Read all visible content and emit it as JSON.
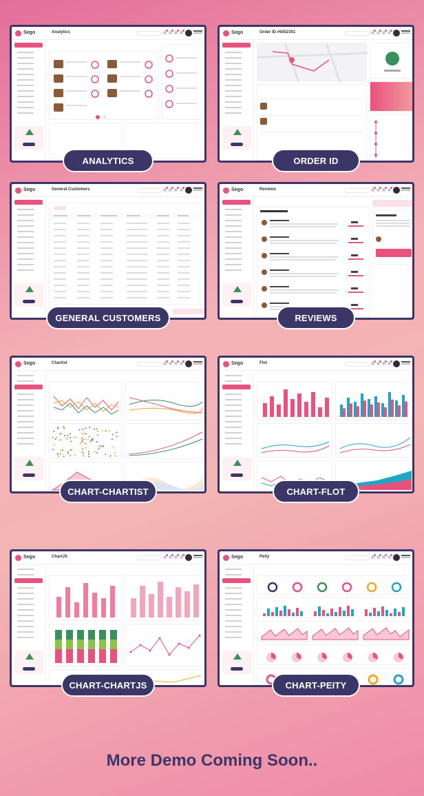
{
  "brand": "Sego",
  "cards": [
    {
      "page_title": "Analytics",
      "label": "ANALYTICS"
    },
    {
      "page_title": "Order ID #5552351",
      "label": "ORDER ID"
    },
    {
      "page_title": "General Customers",
      "label": "GENERAL CUSTOMERS"
    },
    {
      "page_title": "Reviews",
      "label": "REVIEWS"
    },
    {
      "page_title": "Chartist",
      "label": "CHART-CHARTIST"
    },
    {
      "page_title": "Flot",
      "label": "CHART-FLOT"
    },
    {
      "page_title": "ChartJS",
      "label": "CHART-CHARTJS"
    },
    {
      "page_title": "Peity",
      "label": "CHART-PEITY"
    }
  ],
  "footer": "More Demo Coming Soon..",
  "colors": {
    "accent": "#e8527d",
    "navy": "#3b3568",
    "teal": "#1ea7c5"
  }
}
